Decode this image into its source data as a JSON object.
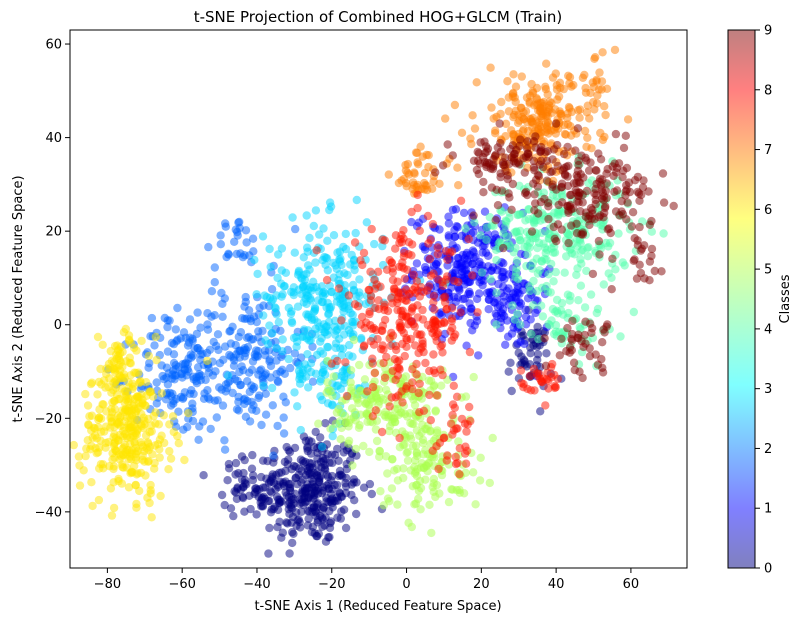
{
  "chart_data": {
    "type": "scatter",
    "title": "t-SNE Projection of Combined HOG+GLCM (Train)",
    "xlabel": "t-SNE Axis 1 (Reduced Feature Space)",
    "ylabel": "t-SNE Axis 2 (Reduced Feature Space)",
    "xlim": [
      -90,
      75
    ],
    "ylim": [
      -52,
      63
    ],
    "xticks": [
      -80,
      -60,
      -40,
      -20,
      0,
      20,
      40,
      60
    ],
    "yticks": [
      -40,
      -20,
      0,
      20,
      40,
      60
    ],
    "grid": false,
    "point_alpha": 0.5,
    "colormap": "jet",
    "colorbar": {
      "label": "Classes",
      "range": [
        0,
        9
      ],
      "ticks": [
        0,
        1,
        2,
        3,
        4,
        5,
        6,
        7,
        8,
        9
      ],
      "alpha": 0.5
    },
    "class_colors": [
      "#00007f",
      "#0000ff",
      "#0063ff",
      "#00d4ff",
      "#4effa9",
      "#a9ff4e",
      "#ffe500",
      "#ff7e00",
      "#ff1300",
      "#7f0000"
    ],
    "clusters": [
      {
        "class": 0,
        "center": [
          -26,
          -35
        ],
        "spread": [
          7,
          6
        ],
        "count": 320
      },
      {
        "class": 0,
        "center": [
          -43,
          -35
        ],
        "spread": [
          3,
          3
        ],
        "count": 40
      },
      {
        "class": 0,
        "center": [
          33,
          -7
        ],
        "spread": [
          3,
          4
        ],
        "count": 50
      },
      {
        "class": 1,
        "center": [
          16,
          12
        ],
        "spread": [
          7,
          6
        ],
        "count": 260
      },
      {
        "class": 1,
        "center": [
          28,
          4
        ],
        "spread": [
          5,
          5
        ],
        "count": 80
      },
      {
        "class": 2,
        "center": [
          -43,
          -7
        ],
        "spread": [
          8,
          8
        ],
        "count": 200
      },
      {
        "class": 2,
        "center": [
          -61,
          -11
        ],
        "spread": [
          6,
          6
        ],
        "count": 130
      },
      {
        "class": 2,
        "center": [
          -45,
          17
        ],
        "spread": [
          3,
          3
        ],
        "count": 25
      },
      {
        "class": 3,
        "center": [
          -22,
          6
        ],
        "spread": [
          8,
          8
        ],
        "count": 280
      },
      {
        "class": 3,
        "center": [
          -20,
          -12
        ],
        "spread": [
          6,
          6
        ],
        "count": 60
      },
      {
        "class": 4,
        "center": [
          40,
          20
        ],
        "spread": [
          10,
          6
        ],
        "count": 260
      },
      {
        "class": 4,
        "center": [
          42,
          1
        ],
        "spread": [
          6,
          4
        ],
        "count": 60
      },
      {
        "class": 5,
        "center": [
          -5,
          -17
        ],
        "spread": [
          8,
          5
        ],
        "count": 200
      },
      {
        "class": 5,
        "center": [
          6,
          -30
        ],
        "spread": [
          7,
          5
        ],
        "count": 120
      },
      {
        "class": 6,
        "center": [
          -75,
          -23
        ],
        "spread": [
          6,
          7
        ],
        "count": 300
      },
      {
        "class": 6,
        "center": [
          -76,
          -9
        ],
        "spread": [
          3,
          4
        ],
        "count": 60
      },
      {
        "class": 7,
        "center": [
          35,
          43
        ],
        "spread": [
          8,
          5
        ],
        "count": 240
      },
      {
        "class": 7,
        "center": [
          4,
          32
        ],
        "spread": [
          4,
          3
        ],
        "count": 45
      },
      {
        "class": 7,
        "center": [
          50,
          52
        ],
        "spread": [
          3,
          3
        ],
        "count": 20
      },
      {
        "class": 8,
        "center": [
          0,
          1
        ],
        "spread": [
          8,
          9
        ],
        "count": 280
      },
      {
        "class": 8,
        "center": [
          36,
          -12
        ],
        "spread": [
          3,
          2
        ],
        "count": 30
      },
      {
        "class": 8,
        "center": [
          14,
          -25
        ],
        "spread": [
          3,
          4
        ],
        "count": 30
      },
      {
        "class": 9,
        "center": [
          48,
          28
        ],
        "spread": [
          9,
          5
        ],
        "count": 190
      },
      {
        "class": 9,
        "center": [
          27,
          35
        ],
        "spread": [
          7,
          3
        ],
        "count": 90
      },
      {
        "class": 9,
        "center": [
          47,
          -4
        ],
        "spread": [
          4,
          3
        ],
        "count": 40
      },
      {
        "class": 9,
        "center": [
          62,
          15
        ],
        "spread": [
          3,
          3
        ],
        "count": 20
      }
    ]
  }
}
